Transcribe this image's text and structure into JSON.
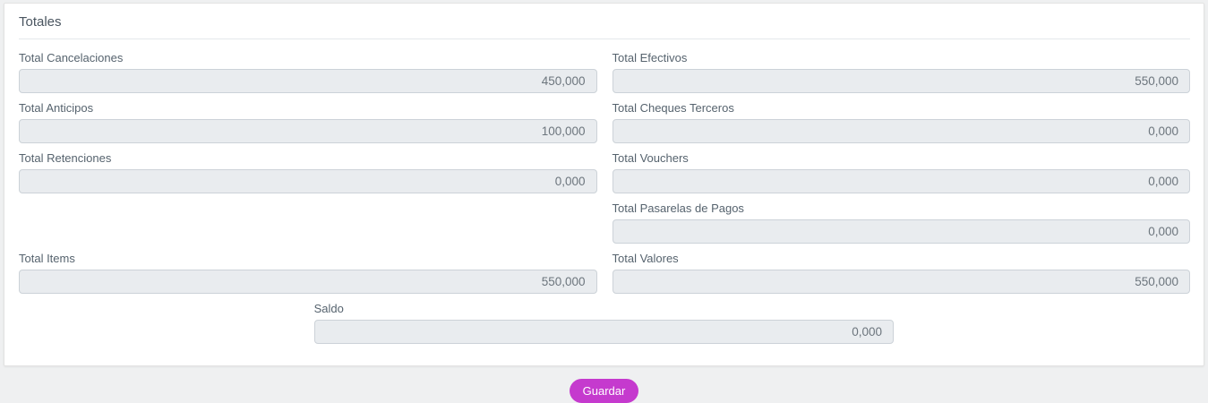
{
  "card": {
    "title": "Totales"
  },
  "fields": [
    {
      "label": "Total Cancelaciones",
      "value": "450,000"
    },
    {
      "label": "Total Efectivos",
      "value": "550,000"
    },
    {
      "label": "Total Anticipos",
      "value": "100,000"
    },
    {
      "label": "Total Cheques Terceros",
      "value": "0,000"
    },
    {
      "label": "Total Retenciones",
      "value": "0,000"
    },
    {
      "label": "Total Vouchers",
      "value": "0,000"
    },
    {
      "label": "Total Pasarelas de Pagos",
      "value": "0,000"
    },
    {
      "label": "Total Items",
      "value": "550,000"
    },
    {
      "label": "Total Valores",
      "value": "550,000"
    },
    {
      "label": "Saldo",
      "value": "0,000"
    }
  ],
  "actions": {
    "save_label": "Guardar"
  },
  "colors": {
    "accent_button": "#c53ace",
    "input_background": "#e9ecef",
    "page_background": "#eff0f1"
  }
}
